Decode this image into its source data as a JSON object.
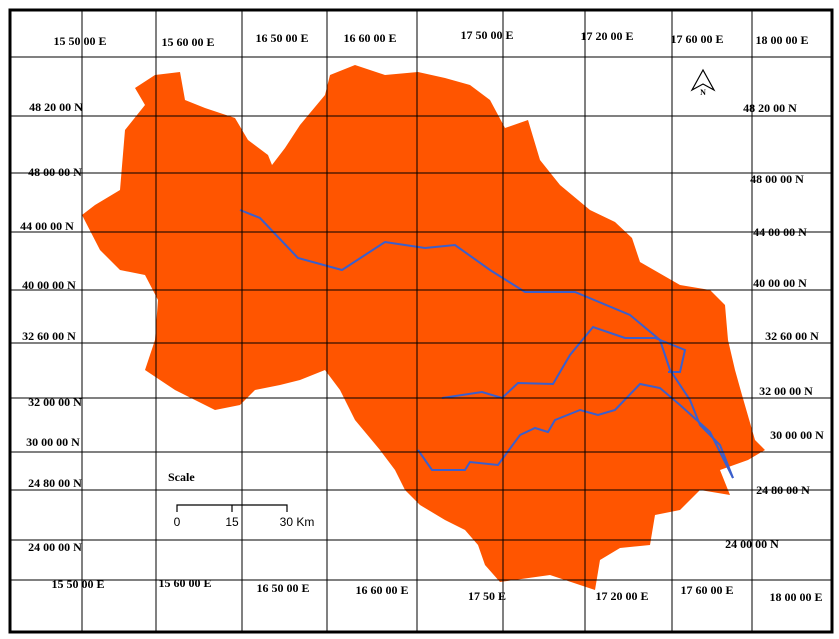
{
  "top_labels": [
    "15 50 00 E",
    "15 60  00 E",
    "16 50 00 E",
    "16 60 00 E",
    "17 50 00 E",
    "17 20 00 E",
    "17 60 00 E",
    "18 00 00 E"
  ],
  "bottom_labels": [
    "15 50 00 E",
    "15 60 00 E",
    "16 50 00 E",
    "16 60 00 E",
    "17 50  E",
    "17 20 00 E",
    "17 60 00 E",
    "18 00 00 E"
  ],
  "left_labels": [
    "48 20  00 N",
    "48 00 00 N",
    "44 00 00 N",
    "40 00 00 N",
    "32 60 00 N",
    "32 00 00 N",
    "30 00 00 N",
    "24 80 00 N",
    "24 00 00 N"
  ],
  "right_labels": [
    "48 20 00 N",
    "48 00 00 N",
    "44 00 00 N",
    "40 00 00 N",
    "32 60 00 N",
    "32 00 00 N",
    "30 00 00 N",
    "24 80 00 N",
    "24 00 00 N"
  ],
  "scale": {
    "title": "Scale",
    "ticks": [
      "0",
      "15",
      "30 Km"
    ]
  },
  "north": "N"
}
